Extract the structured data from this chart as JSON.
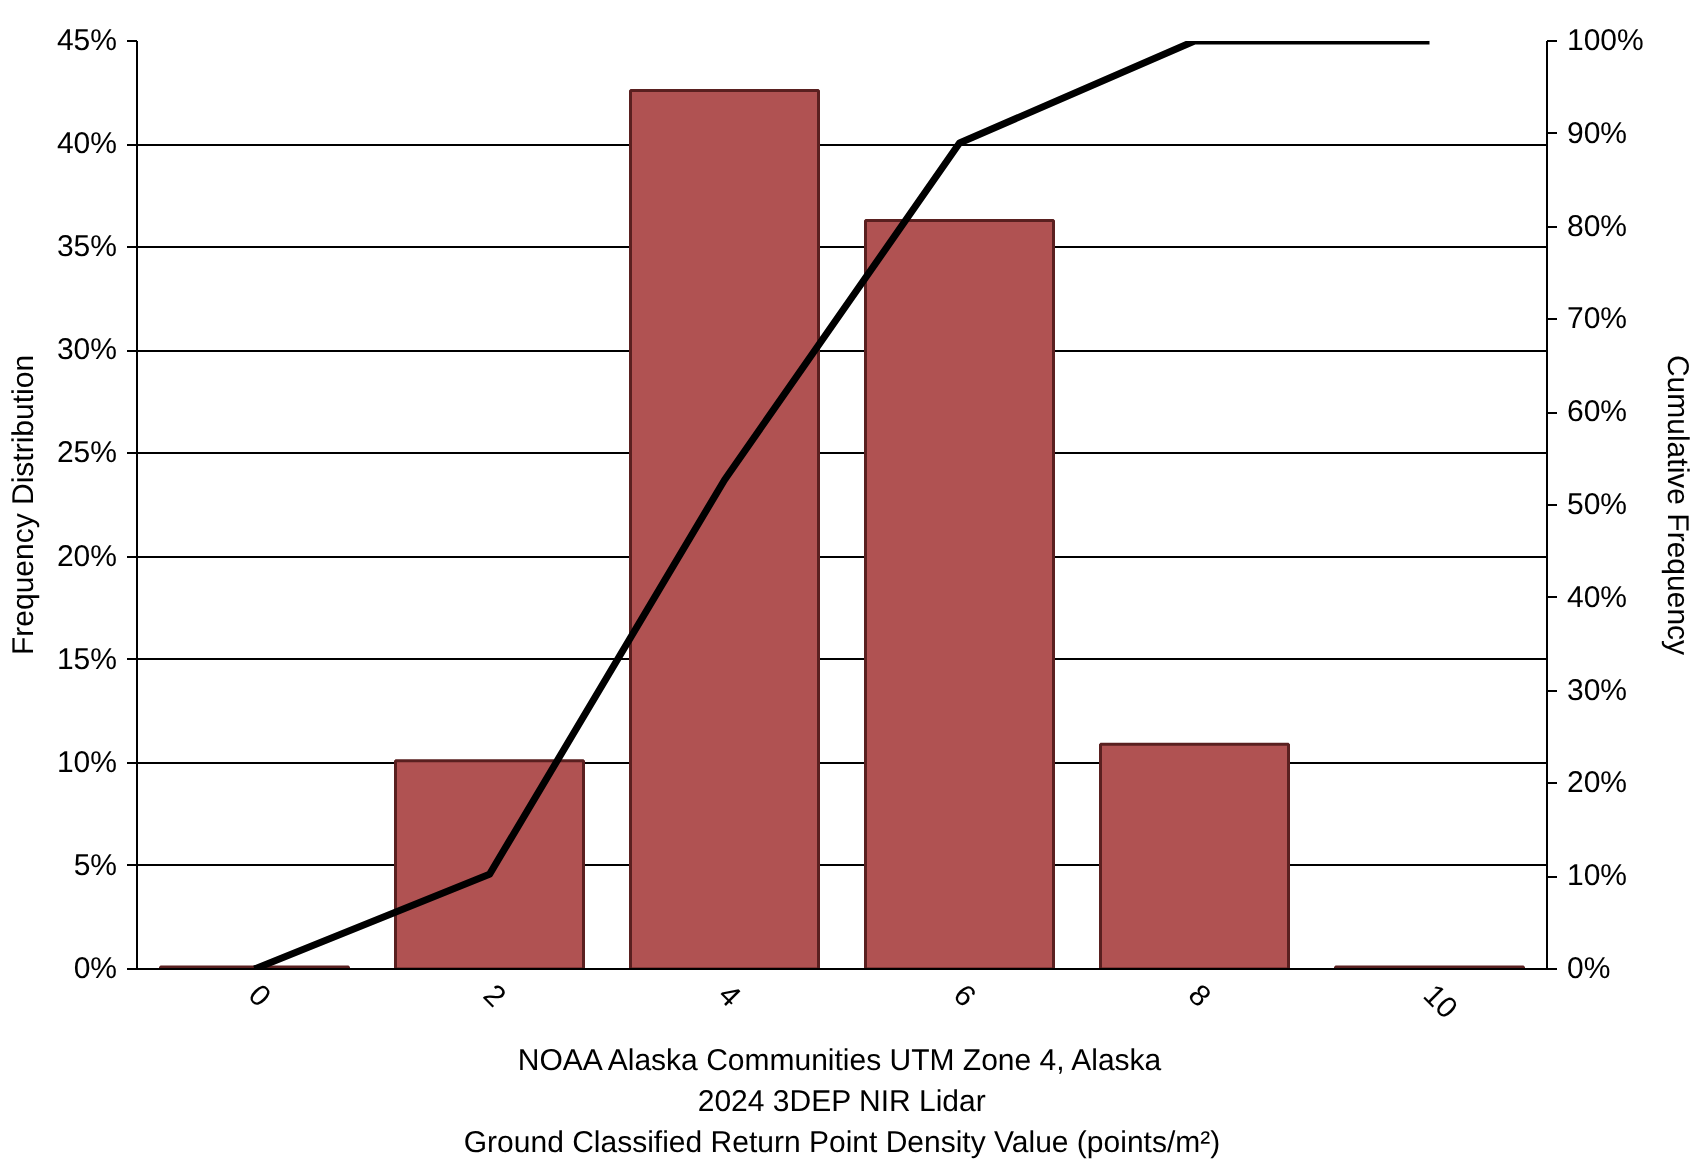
{
  "chart_data": {
    "type": "bar",
    "categories": [
      "0",
      "2",
      "4",
      "6",
      "8",
      "10"
    ],
    "xlabel": "NOAA Alaska Communities UTM Zone 4, Alaska\n2024 3DEP NIR Lidar\nGround Classified Return Point Density Value (points/m²)",
    "ylabel": "Frequency Distribution",
    "y2label": "Cumulative Frequency",
    "series": [
      {
        "color": "#b05252",
        "values": [
          0.1,
          10.1,
          42.6,
          36.3,
          10.9,
          0.1
        ]
      },
      {
        "type": "line",
        "axis": "y2",
        "color": "#000000",
        "values": [
          0,
          10.2,
          52.7,
          89.0,
          100,
          100
        ]
      }
    ],
    "ylim": [
      0,
      45
    ],
    "yticks": [
      {
        "value": 0,
        "label": "0%"
      },
      {
        "value": 5,
        "label": "5%"
      },
      {
        "value": 10,
        "label": "10%"
      },
      {
        "value": 15,
        "label": "15%"
      },
      {
        "value": 20,
        "label": "20%"
      },
      {
        "value": 25,
        "label": "25%"
      },
      {
        "value": 30,
        "label": "30%"
      },
      {
        "value": 35,
        "label": "35%"
      },
      {
        "value": 40,
        "label": "40%"
      },
      {
        "value": 45,
        "label": "45%"
      }
    ],
    "y2lim": [
      0,
      100
    ],
    "y2ticks": [
      {
        "value": 0,
        "label": "0%"
      },
      {
        "value": 10,
        "label": "10%"
      },
      {
        "value": 20,
        "label": "20%"
      },
      {
        "value": 30,
        "label": "30%"
      },
      {
        "value": 40,
        "label": "40%"
      },
      {
        "value": 50,
        "label": "50%"
      },
      {
        "value": 60,
        "label": "60%"
      },
      {
        "value": 70,
        "label": "70%"
      },
      {
        "value": 80,
        "label": "80%"
      },
      {
        "value": 90,
        "label": "90%"
      },
      {
        "value": 100,
        "label": "100%"
      }
    ],
    "grid": "y",
    "marker": "none",
    "line_style": "solid"
  }
}
